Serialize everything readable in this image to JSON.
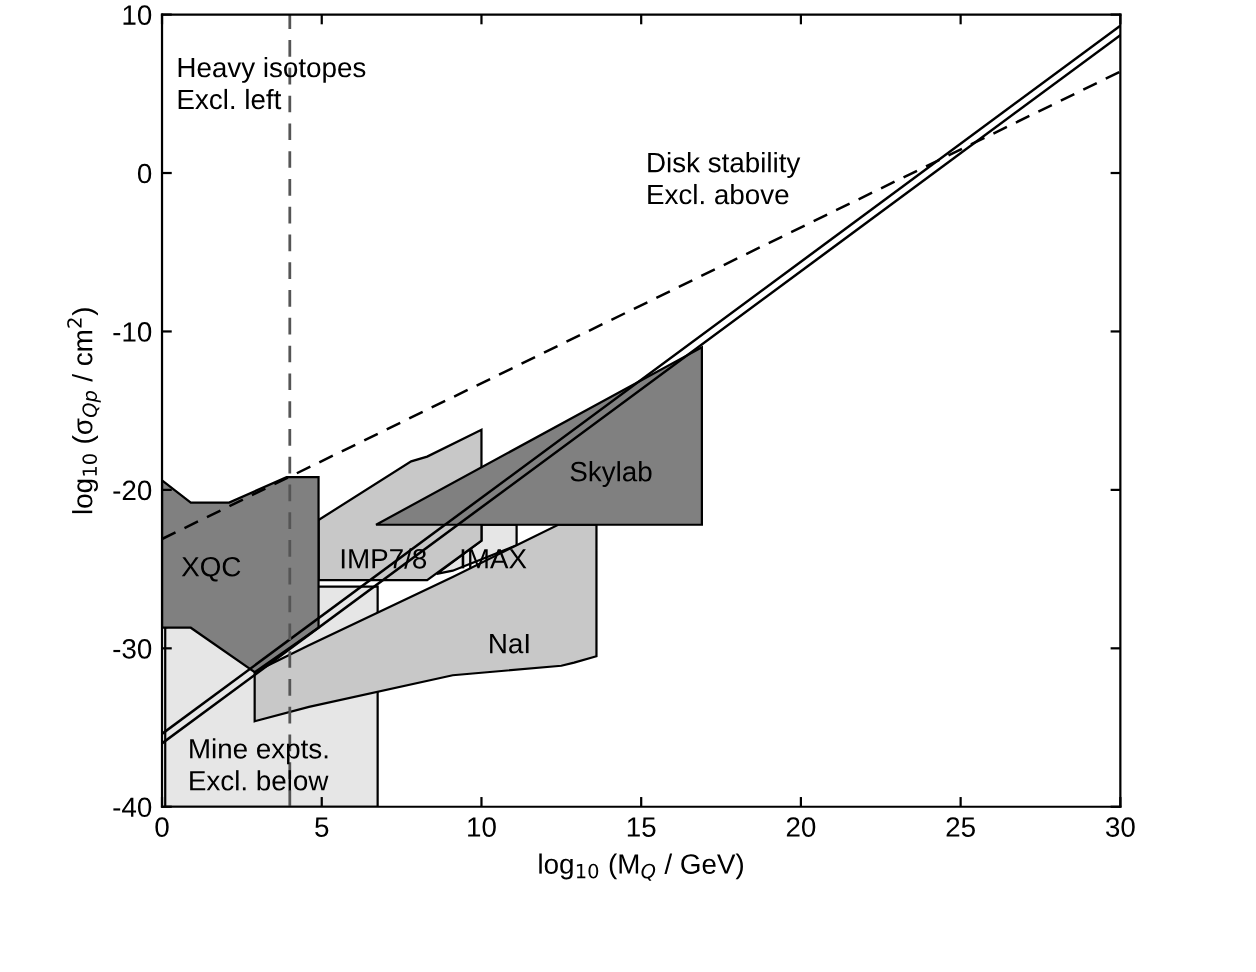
{
  "chart_data": {
    "type": "area",
    "xlabel": "log$_{10}$ (M$_{Q}$ / GeV)",
    "ylabel": "log$_{10}$ (σ$_{Qp}$ / cm$^{2}$)",
    "xlim": [
      0,
      30
    ],
    "ylim": [
      -40,
      10
    ],
    "xticks": [
      0,
      5,
      10,
      15,
      20,
      25,
      30
    ],
    "yticks": [
      -40,
      -30,
      -20,
      -10,
      0,
      10
    ],
    "grid": false,
    "legend": false,
    "series": [
      {
        "color": "#e6e6e6",
        "x": [
          0.1,
          0.1,
          4.9,
          6.75,
          6.75
        ],
        "values": [
          -40,
          -28.7,
          -26.1,
          -26.1,
          -40
        ]
      },
      {
        "color": "#e6e6e6",
        "x": [
          10.0,
          11.1,
          11.1,
          9.1,
          8.6,
          10.0
        ],
        "values": [
          -22.2,
          -22.2,
          -23.5,
          -25.1,
          -25.3,
          -23.2
        ]
      },
      {
        "color": "#c8c8c8",
        "x": [
          2.9,
          4.6,
          9.1,
          12.4,
          13.6,
          13.6,
          12.9,
          12.5,
          9.1,
          4.6,
          2.9
        ],
        "values": [
          -31.5,
          -29.8,
          -25.5,
          -22.2,
          -22.2,
          -30.5,
          -30.9,
          -31.1,
          -31.7,
          -33.7,
          -34.6
        ]
      },
      {
        "color": "#c8c8c8",
        "x": [
          4.9,
          7.8,
          8.3,
          10.0,
          10.0,
          8.3,
          4.9
        ],
        "values": [
          -21.9,
          -18.2,
          -17.9,
          -16.2,
          -23.2,
          -25.7,
          -25.7
        ]
      },
      {
        "color": "#808080",
        "x": [
          0,
          0.9,
          2.1,
          3.9,
          4.9,
          4.9,
          2.9,
          0.9,
          0
        ],
        "values": [
          -19.4,
          -20.8,
          -20.8,
          -19.2,
          -19.2,
          -28.7,
          -31.5,
          -28.7,
          -28.7
        ]
      },
      {
        "color": "#808080",
        "x": [
          6.7,
          16.9,
          16.9
        ],
        "values": [
          -22.2,
          -11.0,
          -22.2
        ]
      },
      {
        "type": "line",
        "color": "#000000",
        "line_style": "solid",
        "x": [
          0,
          30
        ],
        "values": [
          -35.4,
          9.3
        ]
      },
      {
        "type": "line",
        "color": "#000000",
        "line_style": "solid",
        "x": [
          0,
          30
        ],
        "values": [
          -36.0,
          8.7
        ]
      },
      {
        "type": "line",
        "color": "#000000",
        "line_style": "dashed",
        "x": [
          0,
          30
        ],
        "values": [
          -23.1,
          6.4
        ]
      }
    ],
    "ref_lines": [
      {
        "axis": "x",
        "value": 4,
        "color": "#555555",
        "line_style": "dashed"
      }
    ],
    "annotations": [
      "Heavy isotopes\nExcl. left",
      "Disk stability\nExcl. above",
      "XQC",
      "IMP7/8",
      "IMAX",
      "Skylab",
      "NaI",
      "Mine expts.\nExcl. below"
    ]
  }
}
